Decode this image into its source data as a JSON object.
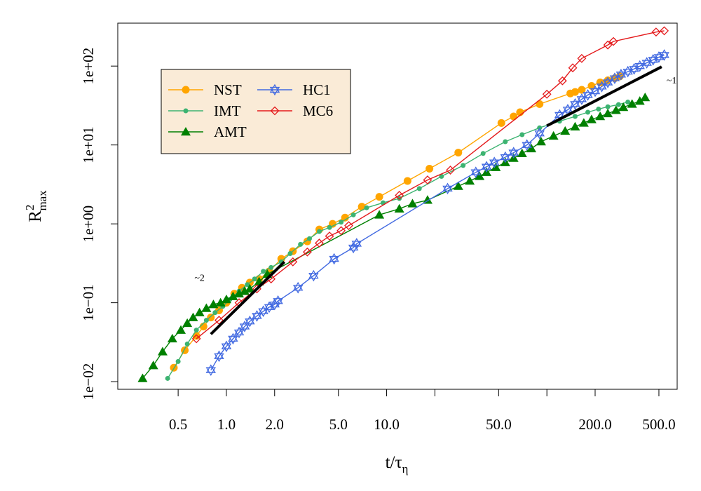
{
  "chart_data": {
    "type": "line",
    "x_scale": "log",
    "y_scale": "log",
    "xlim": [
      0.21,
      650
    ],
    "ylim": [
      0.008,
      350
    ],
    "grid": false,
    "legend_position": "top-left",
    "xlabel": {
      "main": "t/τ",
      "sub": "η"
    },
    "ylabel": {
      "main": "R",
      "sup": "2",
      "sub": "max"
    },
    "x_ticks": [
      0.5,
      1,
      2,
      5,
      10,
      20,
      50,
      100,
      200,
      500
    ],
    "x_tick_labels": [
      "0.5",
      "1.0",
      "2.0",
      "5.0",
      "10.0",
      "",
      "50.0",
      "",
      "200.0",
      "500.0"
    ],
    "y_ticks": [
      0.01,
      0.1,
      1,
      10,
      100
    ],
    "y_tick_labels": [
      "1e−02",
      "1e−01",
      "1e+00",
      "1e+01",
      "1e+02"
    ],
    "annotations": [
      {
        "text": "~2",
        "x": 0.68,
        "y": 0.19
      },
      {
        "text": "~1",
        "x": 600,
        "y": 60
      }
    ],
    "reference_lines": [
      {
        "name": "slope 2",
        "x": [
          0.8,
          2.3
        ],
        "y": [
          0.04,
          0.33
        ]
      },
      {
        "name": "slope 1",
        "x": [
          100,
          520
        ],
        "y": [
          17.5,
          98
        ]
      }
    ],
    "series": [
      {
        "name": "NST",
        "color": "#FFA500",
        "marker": "circle",
        "x": [
          0.47,
          0.55,
          0.65,
          0.72,
          0.8,
          0.9,
          1.0,
          1.12,
          1.25,
          1.4,
          1.6,
          1.85,
          2.2,
          2.6,
          3.2,
          3.8,
          4.6,
          5.5,
          7.0,
          9.0,
          13.5,
          18.5,
          28,
          52,
          62,
          68,
          90,
          140,
          150,
          165,
          190,
          215,
          240,
          265,
          285
        ],
        "y": [
          0.015,
          0.025,
          0.038,
          0.05,
          0.065,
          0.08,
          0.1,
          0.13,
          0.155,
          0.18,
          0.2,
          0.25,
          0.36,
          0.45,
          0.6,
          0.85,
          1.0,
          1.2,
          1.65,
          2.2,
          3.5,
          5.0,
          8.0,
          19,
          23,
          26,
          33,
          45,
          47,
          50,
          56,
          62,
          66,
          70,
          74
        ]
      },
      {
        "name": "IMT",
        "color": "#3CB371",
        "marker": "dot",
        "x": [
          0.43,
          0.5,
          0.57,
          0.65,
          0.75,
          0.85,
          0.95,
          1.05,
          1.2,
          1.35,
          1.5,
          1.7,
          1.9,
          2.2,
          2.5,
          2.9,
          3.3,
          3.8,
          4.4,
          5.2,
          6.2,
          7.5,
          9.5,
          12,
          16,
          22,
          30,
          40,
          55,
          70,
          90,
          120,
          150,
          180,
          210,
          240,
          280,
          320
        ],
        "y": [
          0.011,
          0.018,
          0.03,
          0.045,
          0.06,
          0.075,
          0.09,
          0.11,
          0.14,
          0.17,
          0.2,
          0.25,
          0.28,
          0.33,
          0.42,
          0.55,
          0.65,
          0.8,
          0.9,
          1.05,
          1.3,
          1.6,
          1.85,
          2.1,
          2.8,
          4.0,
          5.5,
          7.8,
          11,
          13.5,
          16.5,
          20,
          23,
          26,
          28.5,
          30.5,
          32.5,
          35
        ]
      },
      {
        "name": "AMT",
        "color": "#008000",
        "marker": "triangle",
        "x": [
          0.3,
          0.35,
          0.4,
          0.46,
          0.52,
          0.57,
          0.62,
          0.68,
          0.75,
          0.83,
          0.92,
          1.0,
          1.1,
          1.2,
          1.3,
          1.4,
          1.6,
          1.8,
          9.0,
          12,
          14.5,
          18,
          28,
          33,
          38,
          42,
          48,
          55,
          62,
          70,
          80,
          92,
          110,
          130,
          150,
          170,
          190,
          215,
          240,
          270,
          300,
          340,
          380,
          410
        ],
        "y": [
          0.011,
          0.016,
          0.024,
          0.035,
          0.045,
          0.055,
          0.065,
          0.075,
          0.085,
          0.095,
          0.1,
          0.11,
          0.12,
          0.13,
          0.14,
          0.15,
          0.185,
          0.23,
          1.3,
          1.55,
          1.8,
          2.0,
          3.0,
          3.5,
          4.0,
          4.5,
          5.2,
          6.0,
          6.8,
          7.8,
          9.0,
          11,
          13,
          15,
          17,
          19,
          21,
          23,
          25,
          27.5,
          30,
          33,
          36,
          40
        ]
      },
      {
        "name": "HC1",
        "color": "#4169E1",
        "marker": "star",
        "x": [
          0.8,
          0.9,
          1.0,
          1.1,
          1.2,
          1.3,
          1.4,
          1.55,
          1.7,
          1.85,
          2.0,
          2.1,
          2.8,
          3.5,
          4.7,
          6.2,
          6.5,
          24,
          36,
          42,
          47,
          55,
          62,
          75,
          90,
          120,
          135,
          150,
          165,
          180,
          200,
          220,
          240,
          265,
          290,
          320,
          350,
          380,
          420,
          460,
          500,
          540
        ],
        "y": [
          0.014,
          0.021,
          0.028,
          0.035,
          0.042,
          0.05,
          0.058,
          0.068,
          0.078,
          0.088,
          0.095,
          0.105,
          0.155,
          0.22,
          0.36,
          0.5,
          0.56,
          2.8,
          4.5,
          5.3,
          6.0,
          7.0,
          8.0,
          10,
          14,
          24,
          28,
          33,
          38,
          43,
          48,
          55,
          62,
          70,
          78,
          85,
          92,
          100,
          110,
          120,
          130,
          138
        ]
      },
      {
        "name": "MC6",
        "color": "#E41A1C",
        "marker": "diamond",
        "x": [
          0.65,
          0.9,
          1.2,
          1.55,
          1.9,
          2.6,
          3.2,
          3.8,
          4.4,
          5.2,
          5.8,
          12,
          18,
          25,
          100,
          125,
          145,
          165,
          240,
          260,
          480,
          540
        ],
        "y": [
          0.035,
          0.06,
          0.1,
          0.15,
          0.2,
          0.33,
          0.44,
          0.57,
          0.7,
          0.82,
          0.95,
          2.3,
          3.6,
          4.8,
          44,
          65,
          95,
          125,
          185,
          205,
          270,
          280
        ]
      }
    ]
  }
}
